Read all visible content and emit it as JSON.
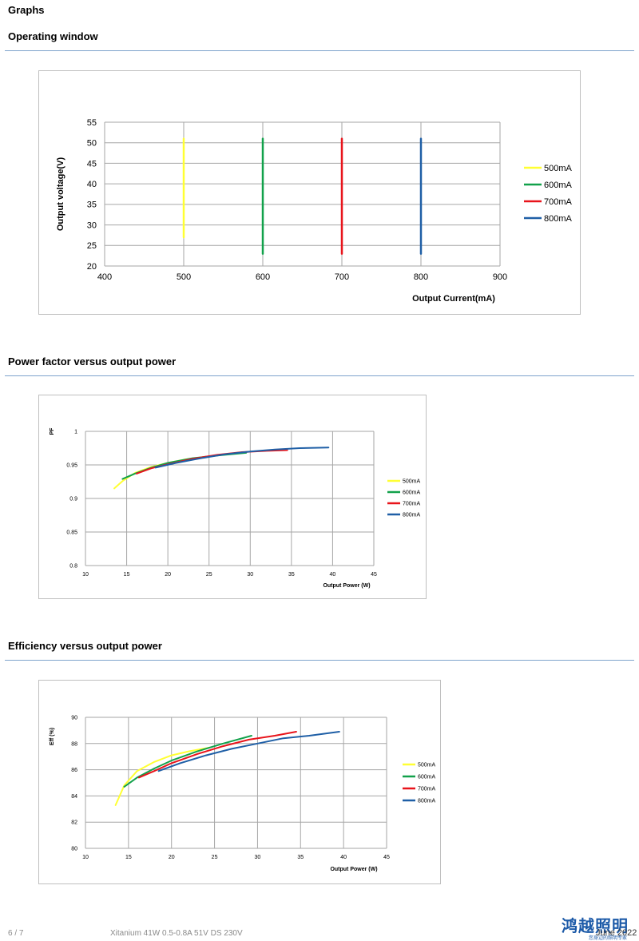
{
  "page": {
    "heading": "Graphs",
    "sections": [
      {
        "title": "Operating window"
      },
      {
        "title": "Power factor versus output power"
      },
      {
        "title": "Efficiency versus output power"
      }
    ]
  },
  "footer": {
    "page_number": "6 / 7",
    "product": "Xitanium 41W 0.5-0.8A 51V DS 230V",
    "date": "June 2022",
    "brand": "鸿越照明",
    "brand_sub": "您身边的照明专家"
  },
  "chart_data": [
    {
      "type": "line",
      "title": "",
      "xlabel": "Output Current(mA)",
      "ylabel": "Output voltage(V)",
      "xlim": [
        400,
        900
      ],
      "ylim": [
        20,
        55
      ],
      "xticks": [
        400,
        500,
        600,
        700,
        800,
        900
      ],
      "yticks": [
        20,
        25,
        30,
        35,
        40,
        45,
        50,
        55
      ],
      "grid": true,
      "legend_position": "right",
      "series": [
        {
          "name": "500mA",
          "color": "#ffff33",
          "points": [
            [
              500,
              27
            ],
            [
              500,
              51
            ]
          ]
        },
        {
          "name": "600mA",
          "color": "#12a14b",
          "points": [
            [
              600,
              23
            ],
            [
              600,
              51
            ]
          ]
        },
        {
          "name": "700mA",
          "color": "#e8141b",
          "points": [
            [
              700,
              23
            ],
            [
              700,
              51
            ]
          ]
        },
        {
          "name": "800mA",
          "color": "#1f5fa6",
          "points": [
            [
              800,
              23
            ],
            [
              800,
              51
            ]
          ]
        }
      ]
    },
    {
      "type": "line",
      "title": "",
      "xlabel": "Output Power (W)",
      "ylabel": "PF",
      "xlim": [
        10,
        45
      ],
      "ylim": [
        0.8,
        1
      ],
      "xticks": [
        10,
        15,
        20,
        25,
        30,
        35,
        40,
        45
      ],
      "yticks": [
        0.8,
        0.85,
        0.9,
        0.95,
        1
      ],
      "grid": true,
      "legend_position": "right",
      "series": [
        {
          "name": "500mA",
          "color": "#ffff33",
          "points": [
            [
              13.5,
              0.915
            ],
            [
              14.5,
              0.926
            ],
            [
              16,
              0.938
            ],
            [
              18,
              0.947
            ],
            [
              20,
              0.953
            ],
            [
              22,
              0.958
            ],
            [
              24.5,
              0.962
            ]
          ]
        },
        {
          "name": "600mA",
          "color": "#12a14b",
          "points": [
            [
              14.5,
              0.929
            ],
            [
              16,
              0.937
            ],
            [
              18,
              0.946
            ],
            [
              20,
              0.953
            ],
            [
              23,
              0.96
            ],
            [
              26,
              0.964
            ],
            [
              29.5,
              0.968
            ]
          ]
        },
        {
          "name": "700mA",
          "color": "#e8141b",
          "points": [
            [
              16.2,
              0.937
            ],
            [
              18,
              0.945
            ],
            [
              20,
              0.951
            ],
            [
              23,
              0.959
            ],
            [
              26,
              0.965
            ],
            [
              29,
              0.969
            ],
            [
              32,
              0.971
            ],
            [
              34.5,
              0.972
            ]
          ]
        },
        {
          "name": "800mA",
          "color": "#1f5fa6",
          "points": [
            [
              18.5,
              0.946
            ],
            [
              21,
              0.953
            ],
            [
              24,
              0.96
            ],
            [
              27,
              0.966
            ],
            [
              30,
              0.97
            ],
            [
              33,
              0.973
            ],
            [
              36,
              0.975
            ],
            [
              39.5,
              0.976
            ]
          ]
        }
      ]
    },
    {
      "type": "line",
      "title": "",
      "xlabel": "Output Power (W)",
      "ylabel": "Eff (%)",
      "xlim": [
        10,
        45
      ],
      "ylim": [
        80,
        90
      ],
      "xticks": [
        10,
        15,
        20,
        25,
        30,
        35,
        40,
        45
      ],
      "yticks": [
        80,
        82,
        84,
        86,
        88,
        90
      ],
      "grid": true,
      "legend_position": "right",
      "series": [
        {
          "name": "500mA",
          "color": "#ffff33",
          "points": [
            [
              13.5,
              83.3
            ],
            [
              14.5,
              84.8
            ],
            [
              16,
              85.9
            ],
            [
              18,
              86.6
            ],
            [
              20,
              87.1
            ],
            [
              22,
              87.4
            ],
            [
              24.5,
              87.7
            ]
          ]
        },
        {
          "name": "600mA",
          "color": "#12a14b",
          "points": [
            [
              14.5,
              84.7
            ],
            [
              16,
              85.4
            ],
            [
              18,
              86.1
            ],
            [
              20,
              86.7
            ],
            [
              23,
              87.4
            ],
            [
              26,
              88.0
            ],
            [
              29.3,
              88.6
            ]
          ]
        },
        {
          "name": "700mA",
          "color": "#e8141b",
          "points": [
            [
              16.2,
              85.4
            ],
            [
              18,
              85.9
            ],
            [
              20,
              86.5
            ],
            [
              23,
              87.2
            ],
            [
              26,
              87.8
            ],
            [
              29,
              88.3
            ],
            [
              32,
              88.6
            ],
            [
              34.5,
              88.9
            ]
          ]
        },
        {
          "name": "800mA",
          "color": "#1f5fa6",
          "points": [
            [
              18.5,
              85.9
            ],
            [
              21,
              86.5
            ],
            [
              24,
              87.1
            ],
            [
              27,
              87.6
            ],
            [
              30,
              88.0
            ],
            [
              33,
              88.4
            ],
            [
              36,
              88.6
            ],
            [
              39.5,
              88.9
            ]
          ]
        }
      ]
    }
  ]
}
